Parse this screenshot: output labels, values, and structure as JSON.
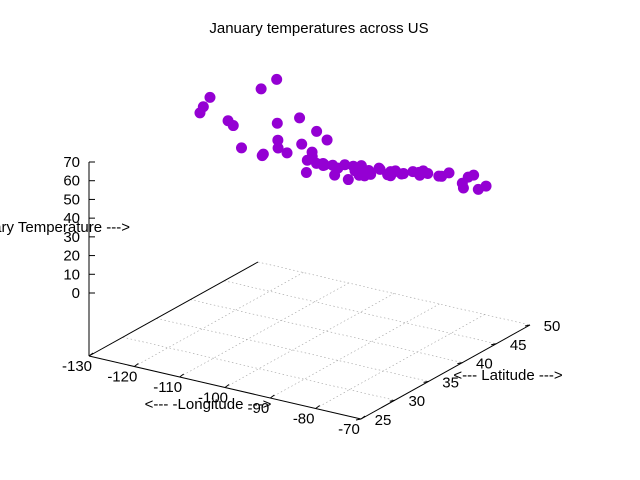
{
  "chart_data": {
    "type": "scatter",
    "dimensions": 3,
    "title": "January temperatures across US",
    "xlabel": "<--- -Longitude --->",
    "ylabel": "<--- Latitude --->",
    "zlabel": "<--- January Temperature --->",
    "xlim": [
      -130,
      -70
    ],
    "ylim": [
      25,
      50
    ],
    "zlim": [
      0,
      70
    ],
    "xticks": [
      -130,
      -120,
      -110,
      -100,
      -90,
      -80,
      -70
    ],
    "yticks": [
      25,
      30,
      35,
      40,
      45,
      50
    ],
    "zticks": [
      0,
      10,
      20,
      30,
      40,
      50,
      60,
      70
    ],
    "grid": true,
    "marker_color": "#9400d3",
    "points": [
      [
        -81.5,
        25.5,
        67
      ],
      [
        -80.5,
        26.5,
        61
      ],
      [
        -82.5,
        28.0,
        57
      ],
      [
        -81.0,
        30.5,
        45
      ],
      [
        -89.5,
        30.0,
        45
      ],
      [
        -95.0,
        29.5,
        56
      ],
      [
        -98.5,
        29.5,
        50
      ],
      [
        -97.5,
        32.5,
        46
      ],
      [
        -84.0,
        33.5,
        42
      ],
      [
        -87.0,
        32.5,
        40
      ],
      [
        -91.0,
        32.5,
        44
      ],
      [
        -79.5,
        32.8,
        44
      ],
      [
        -90.0,
        35.0,
        37
      ],
      [
        -86.8,
        36.0,
        33
      ],
      [
        -92.5,
        34.5,
        38
      ],
      [
        -117.0,
        32.7,
        56
      ],
      [
        -118.2,
        34.0,
        56
      ],
      [
        -122.4,
        37.8,
        51
      ],
      [
        -112.0,
        33.5,
        53
      ],
      [
        -106.5,
        31.8,
        45
      ],
      [
        -106.6,
        35.1,
        35
      ],
      [
        -119.8,
        39.5,
        34
      ],
      [
        -122.6,
        45.5,
        40
      ],
      [
        -122.3,
        47.6,
        41
      ],
      [
        -117.4,
        47.7,
        23
      ],
      [
        -116.2,
        43.6,
        29
      ],
      [
        -111.9,
        40.8,
        28
      ],
      [
        -105.0,
        39.7,
        32
      ],
      [
        -104.8,
        41.1,
        25
      ],
      [
        -108.5,
        45.8,
        20
      ],
      [
        -112.0,
        46.6,
        21
      ],
      [
        -100.8,
        46.8,
        6
      ],
      [
        -96.8,
        43.5,
        12
      ],
      [
        -96.0,
        41.3,
        22
      ],
      [
        -97.3,
        37.7,
        30
      ],
      [
        -97.5,
        35.5,
        36
      ],
      [
        -94.6,
        39.1,
        28
      ],
      [
        -90.2,
        38.6,
        31
      ],
      [
        -93.6,
        41.6,
        20
      ],
      [
        -93.3,
        45.0,
        11
      ],
      [
        -87.6,
        41.9,
        23
      ],
      [
        -87.9,
        43.0,
        19
      ],
      [
        -86.2,
        39.8,
        26
      ],
      [
        -84.5,
        39.1,
        30
      ],
      [
        -83.0,
        40.0,
        28
      ],
      [
        -81.7,
        41.5,
        26
      ],
      [
        -83.0,
        42.3,
        24
      ],
      [
        -80.0,
        40.4,
        28
      ],
      [
        -77.0,
        38.9,
        35
      ],
      [
        -76.6,
        39.3,
        33
      ],
      [
        -75.2,
        40.0,
        31
      ],
      [
        -74.0,
        40.7,
        32
      ],
      [
        -73.8,
        42.7,
        20
      ],
      [
        -71.1,
        42.4,
        29
      ],
      [
        -72.7,
        41.8,
        25
      ],
      [
        -71.4,
        41.8,
        29
      ],
      [
        -70.3,
        43.7,
        21
      ],
      [
        -73.2,
        44.5,
        16
      ],
      [
        -78.9,
        42.9,
        23
      ],
      [
        -76.3,
        36.9,
        39
      ],
      [
        -78.6,
        35.8,
        40
      ],
      [
        -81.0,
        35.2,
        41
      ],
      [
        -85.7,
        38.2,
        33
      ],
      [
        -84.3,
        30.4,
        51
      ]
    ]
  }
}
